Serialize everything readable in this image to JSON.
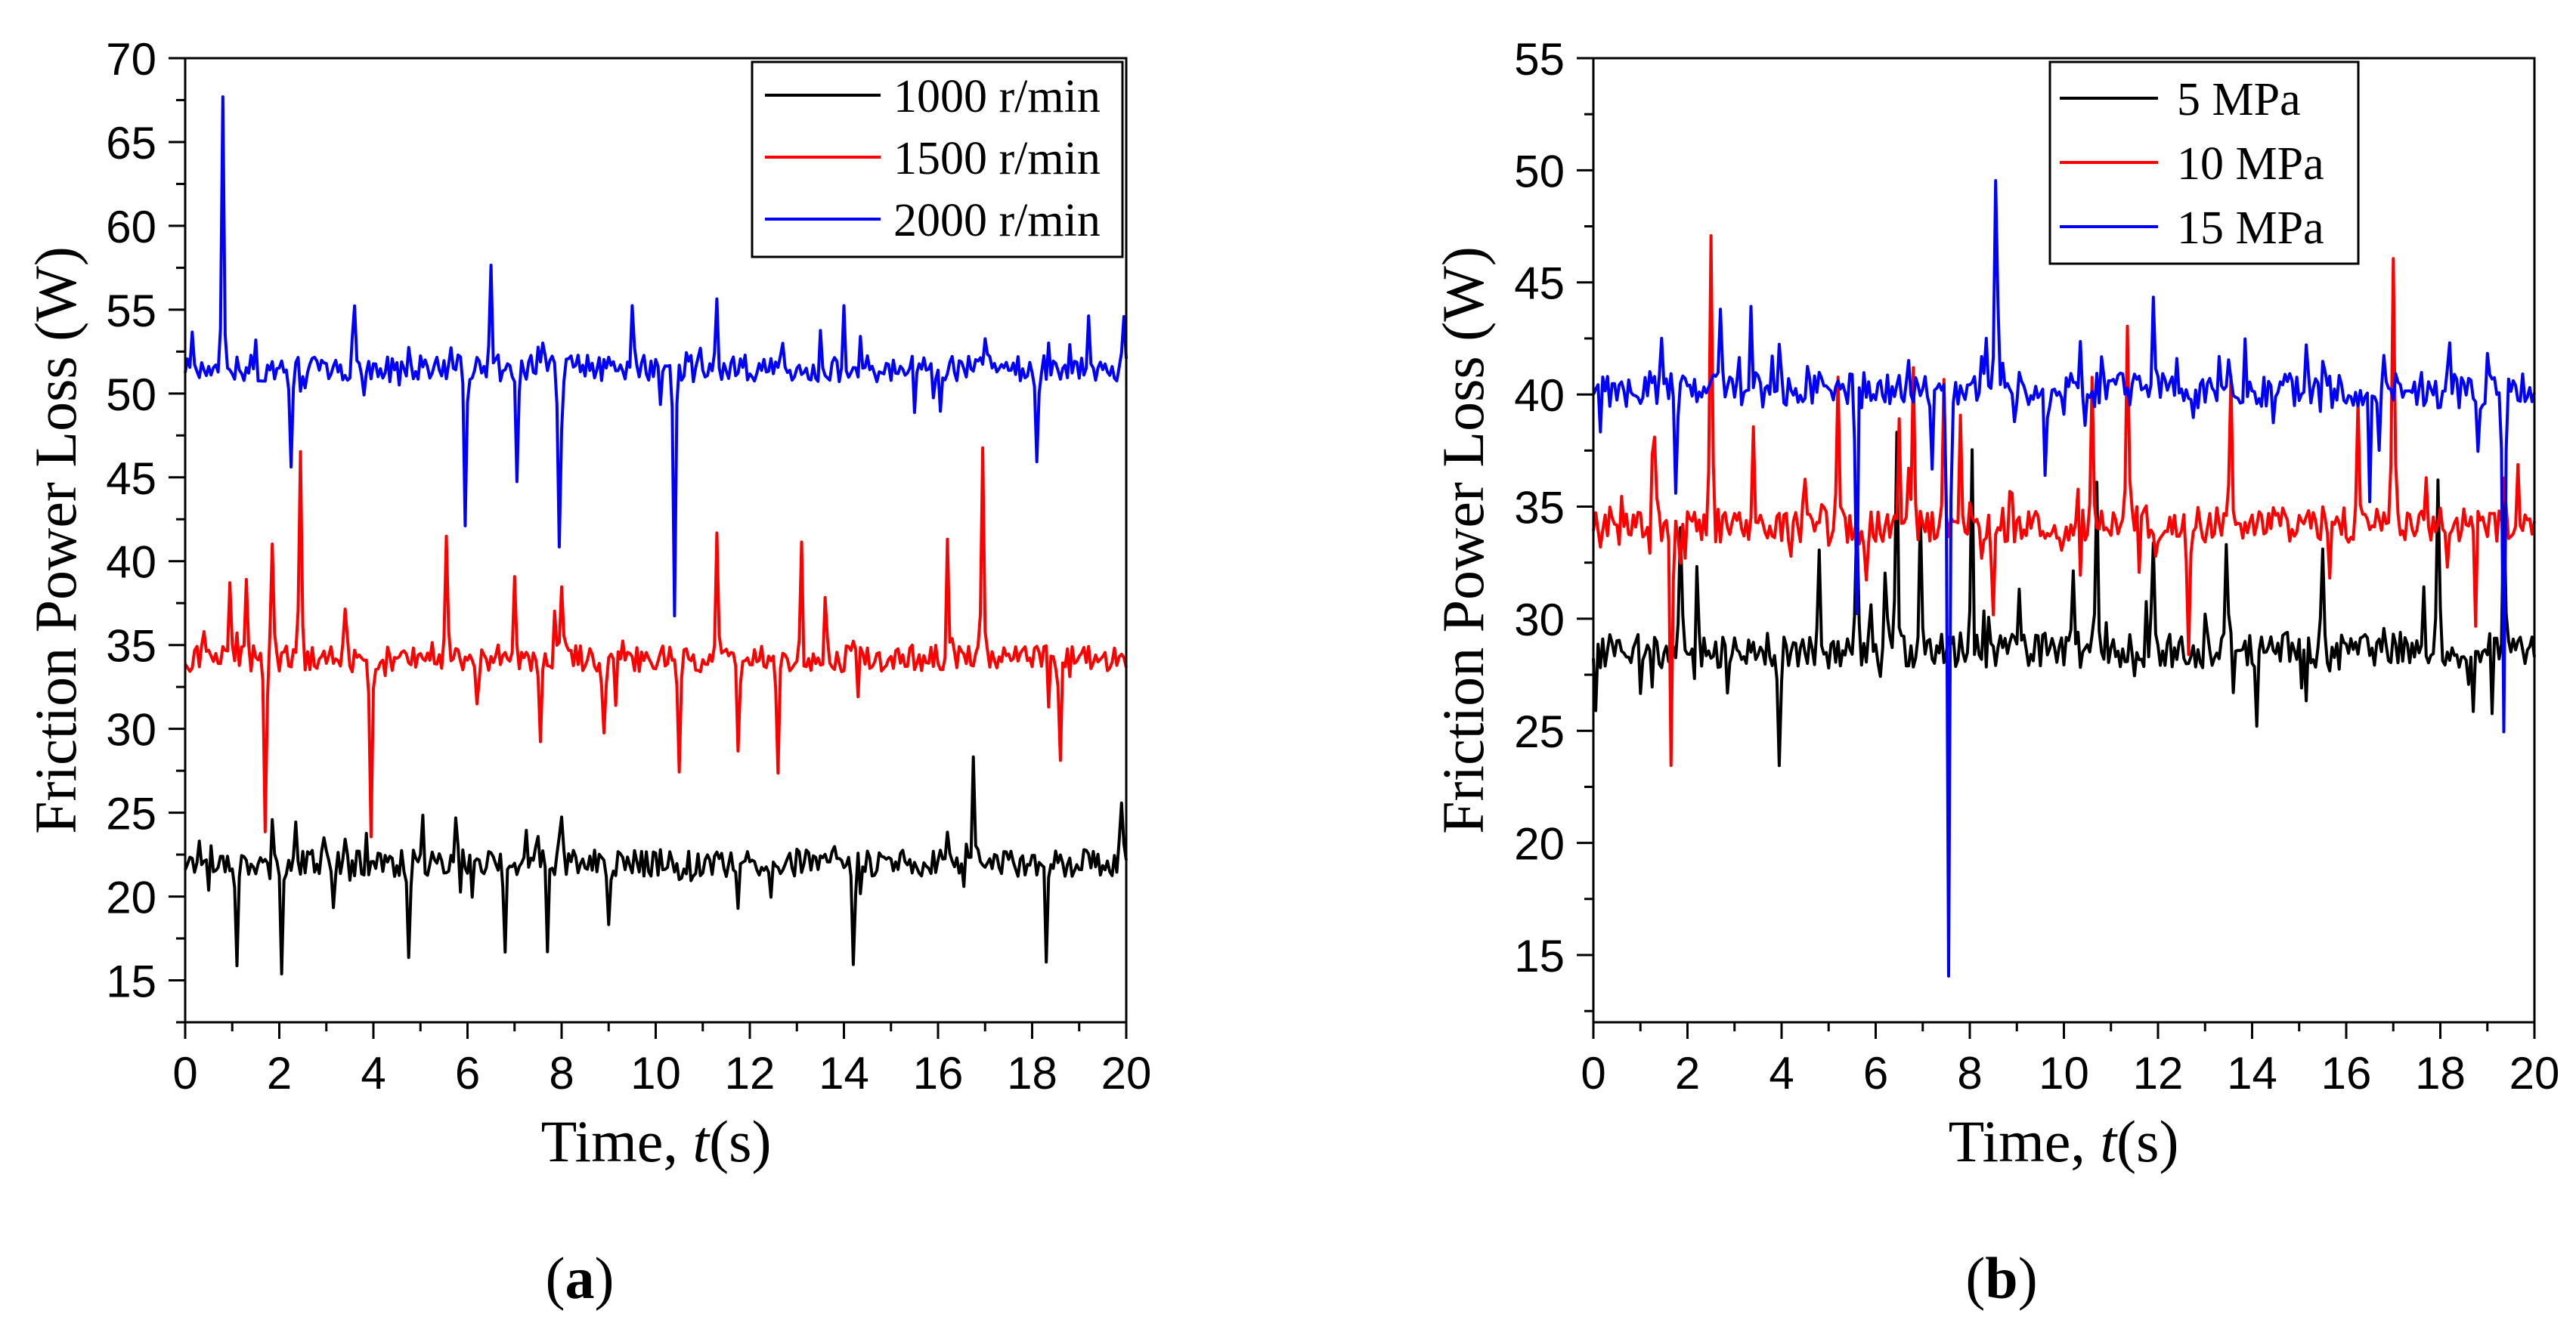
{
  "chart_data": [
    {
      "panel_label": "a",
      "type": "line",
      "title": "",
      "xlabel_main": "Time, ",
      "xlabel_var": "t",
      "xlabel_unit": "(s)",
      "ylabel": "Friction Power Loss (W)",
      "xlim": [
        0,
        20
      ],
      "ylim": [
        12.5,
        70
      ],
      "xticks": [
        0,
        2,
        4,
        6,
        8,
        10,
        12,
        14,
        16,
        18,
        20
      ],
      "yticks": [
        15,
        20,
        25,
        30,
        35,
        40,
        45,
        50,
        55,
        60,
        65,
        70
      ],
      "legend_position": "top-right",
      "series": [
        {
          "name": "1000 r/min",
          "color": "#000000",
          "base": 22,
          "spikes": [
            [
              0.5,
              21
            ],
            [
              1.1,
              16.6
            ],
            [
              1.8,
              21
            ],
            [
              2.05,
              16
            ],
            [
              2.95,
              23.9
            ],
            [
              3.5,
              21
            ],
            [
              4.75,
              15.7
            ],
            [
              5.5,
              21
            ],
            [
              5.75,
              24.9
            ],
            [
              6.8,
              17
            ],
            [
              7.5,
              23.5
            ],
            [
              7.7,
              17
            ],
            [
              8.0,
              24.5
            ],
            [
              9.0,
              18
            ],
            [
              10.5,
              21
            ],
            [
              11.5,
              21
            ],
            [
              14.2,
              16.5
            ],
            [
              16.2,
              23.5
            ],
            [
              16.75,
              28.3
            ],
            [
              17.1,
              22.5
            ],
            [
              18.3,
              16.5
            ],
            [
              19.9,
              26.1
            ]
          ]
        },
        {
          "name": "1500 r/min",
          "color": "#ff0000",
          "base": 34.2,
          "spikes": [
            [
              0.4,
              36
            ],
            [
              0.95,
              38
            ],
            [
              1.3,
              39.5
            ],
            [
              1.7,
              24
            ],
            [
              1.85,
              40.7
            ],
            [
              2.45,
              47
            ],
            [
              3.4,
              37
            ],
            [
              3.95,
              24.3
            ],
            [
              5.55,
              41.4
            ],
            [
              6.2,
              31
            ],
            [
              7.0,
              39.3
            ],
            [
              7.55,
              29
            ],
            [
              8.0,
              38
            ],
            [
              8.9,
              29
            ],
            [
              9.3,
              36.7
            ],
            [
              10.5,
              28
            ],
            [
              11.3,
              41.4
            ],
            [
              11.75,
              29
            ],
            [
              12.6,
              28
            ],
            [
              13.1,
              40.4
            ],
            [
              13.6,
              38
            ],
            [
              14.2,
              34.8
            ],
            [
              16.2,
              39.1
            ],
            [
              16.95,
              46.6
            ],
            [
              18.6,
              28.7
            ]
          ]
        },
        {
          "name": "2000 r/min",
          "color": "#0000ff",
          "base": 51.5,
          "spikes": [
            [
              0.15,
              53.5
            ],
            [
              0.8,
              67.6
            ],
            [
              2.25,
              45.2
            ],
            [
              3.6,
              55.5
            ],
            [
              5.65,
              52.5
            ],
            [
              5.95,
              41.6
            ],
            [
              6.5,
              58.1
            ],
            [
              7.05,
              45
            ],
            [
              7.6,
              52.5
            ],
            [
              7.95,
              41.5
            ],
            [
              9.5,
              55.1
            ],
            [
              10.4,
              37
            ],
            [
              11.3,
              55.7
            ],
            [
              12.7,
              53.5
            ],
            [
              14.0,
              54
            ],
            [
              15.6,
              52.5
            ],
            [
              17.0,
              54
            ],
            [
              18.1,
              46
            ],
            [
              19.2,
              54.6
            ],
            [
              19.95,
              53.8
            ]
          ]
        }
      ]
    },
    {
      "panel_label": "b",
      "type": "line",
      "title": "",
      "xlabel_main": "Time, ",
      "xlabel_var": "t",
      "xlabel_unit": "(s)",
      "ylabel": "Friction Power Loss (W)",
      "xlim": [
        0,
        20
      ],
      "ylim": [
        12,
        55
      ],
      "xticks": [
        0,
        2,
        4,
        6,
        8,
        10,
        12,
        14,
        16,
        18,
        20
      ],
      "yticks": [
        15,
        20,
        25,
        30,
        35,
        40,
        45,
        50,
        55
      ],
      "legend_position": "top-right",
      "series": [
        {
          "name": "5 MPa",
          "color": "#000000",
          "base": 28.6,
          "spikes": [
            [
              1.85,
              34.5
            ],
            [
              2.2,
              32.8
            ],
            [
              3.95,
              23.9
            ],
            [
              4.8,
              32.5
            ],
            [
              5.6,
              34.5
            ],
            [
              6.2,
              32.5
            ],
            [
              6.45,
              39
            ],
            [
              6.95,
              35.5
            ],
            [
              7.6,
              28.5
            ],
            [
              8.05,
              35.5
            ],
            [
              9.05,
              31
            ],
            [
              10.2,
              31.5
            ],
            [
              10.7,
              36.5
            ],
            [
              11.9,
              33.5
            ],
            [
              13.45,
              33.5
            ],
            [
              14.1,
              25.8
            ],
            [
              15.5,
              33.5
            ],
            [
              17.95,
              35.4
            ],
            [
              18.7,
              25.8
            ],
            [
              19.35,
              35
            ]
          ]
        },
        {
          "name": "10 MPa",
          "color": "#ff0000",
          "base": 34.2,
          "spikes": [
            [
              0.6,
              36.2
            ],
            [
              1.3,
              37.8
            ],
            [
              1.65,
              23.9
            ],
            [
              2.5,
              46.9
            ],
            [
              3.4,
              38
            ],
            [
              4.5,
              37
            ],
            [
              5.2,
              41.3
            ],
            [
              5.8,
              32
            ],
            [
              6.5,
              39
            ],
            [
              6.8,
              41.3
            ],
            [
              7.45,
              41
            ],
            [
              7.8,
              38.5
            ],
            [
              8.5,
              30
            ],
            [
              10.6,
              41
            ],
            [
              11.35,
              42.5
            ],
            [
              11.95,
              32.5
            ],
            [
              12.65,
              28
            ],
            [
              13.55,
              40.8
            ],
            [
              16.25,
              39
            ],
            [
              17.0,
              46.5
            ],
            [
              18.75,
              28.9
            ],
            [
              19.35,
              37
            ]
          ]
        },
        {
          "name": "15 MPa",
          "color": "#0000ff",
          "base": 40.2,
          "spikes": [
            [
              0.6,
              41
            ],
            [
              1.75,
              36.3
            ],
            [
              2.7,
              43.5
            ],
            [
              3.35,
              44.1
            ],
            [
              3.95,
              42.5
            ],
            [
              4.55,
              41
            ],
            [
              5.6,
              30.5
            ],
            [
              6.9,
              40.5
            ],
            [
              7.2,
              36
            ],
            [
              7.55,
              13.7
            ],
            [
              8.55,
              49.2
            ],
            [
              8.95,
              39.5
            ],
            [
              9.6,
              37
            ],
            [
              10.3,
              40.5
            ],
            [
              11.9,
              43.6
            ],
            [
              13.5,
              41
            ],
            [
              15.5,
              41
            ],
            [
              16.5,
              35.6
            ],
            [
              18.2,
              42.3
            ],
            [
              18.8,
              37.5
            ],
            [
              19.35,
              24.6
            ]
          ]
        }
      ]
    }
  ]
}
